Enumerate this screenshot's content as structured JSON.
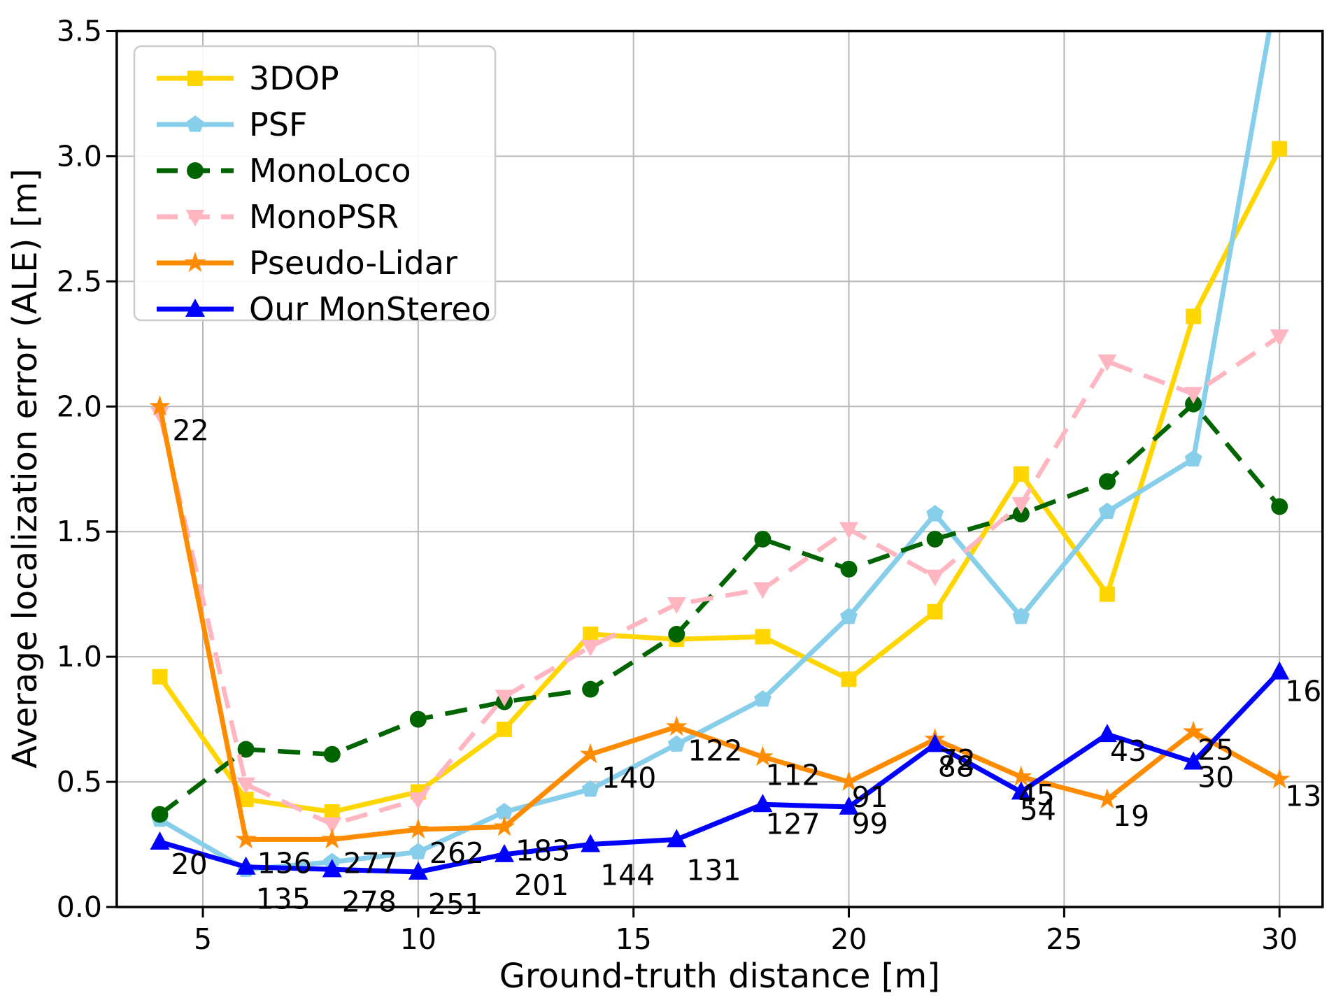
{
  "chart_data": {
    "type": "line",
    "title": "",
    "xlabel": "Ground-truth distance [m]",
    "ylabel": "Average localization error (ALE) [m]",
    "x": [
      4,
      6,
      8,
      10,
      12,
      14,
      16,
      18,
      20,
      22,
      24,
      26,
      28,
      30
    ],
    "xlim": [
      3,
      31
    ],
    "ylim": [
      0,
      3.5
    ],
    "xticks": [
      "5",
      "10",
      "15",
      "20",
      "25",
      "30"
    ],
    "yticks": [
      "0.0",
      "0.5",
      "1.0",
      "1.5",
      "2.0",
      "2.5",
      "3.0",
      "3.5"
    ],
    "grid": true,
    "legend_position": "upper left",
    "series": [
      {
        "name": "3DOP",
        "color": "#FFD600",
        "marker": "square",
        "dash": "solid",
        "values": [
          0.92,
          0.43,
          0.38,
          0.46,
          0.71,
          1.09,
          1.07,
          1.08,
          0.91,
          1.18,
          1.73,
          1.25,
          2.36,
          3.03
        ]
      },
      {
        "name": "PSF",
        "color": "#87CEEB",
        "marker": "pentagon",
        "dash": "solid",
        "values": [
          0.35,
          0.15,
          0.18,
          0.22,
          0.38,
          0.47,
          0.65,
          0.83,
          1.16,
          1.57,
          1.16,
          1.58,
          1.79,
          3.73
        ]
      },
      {
        "name": "MonoLoco",
        "color": "#006400",
        "marker": "circle",
        "dash": "dashed",
        "values": [
          0.37,
          0.63,
          0.61,
          0.75,
          0.82,
          0.87,
          1.09,
          1.47,
          1.35,
          1.47,
          1.57,
          1.7,
          2.01,
          1.6
        ]
      },
      {
        "name": "MonoPSR",
        "color": "#FFB6C1",
        "marker": "triangle-down",
        "dash": "dashed",
        "values": [
          1.97,
          0.49,
          0.33,
          0.43,
          0.84,
          1.04,
          1.21,
          1.27,
          1.51,
          1.32,
          1.61,
          2.18,
          2.05,
          2.28
        ]
      },
      {
        "name": "Pseudo-Lidar",
        "color": "#FF8C00",
        "marker": "star",
        "dash": "solid",
        "values": [
          2.0,
          0.27,
          0.27,
          0.31,
          0.32,
          0.61,
          0.72,
          0.6,
          0.5,
          0.67,
          0.52,
          0.43,
          0.7,
          0.51
        ]
      },
      {
        "name": "Our MonStereo",
        "color": "#0000FF",
        "marker": "triangle-up",
        "dash": "solid",
        "values": [
          0.26,
          0.16,
          0.15,
          0.14,
          0.21,
          0.25,
          0.27,
          0.41,
          0.4,
          0.65,
          0.46,
          0.69,
          0.58,
          0.94
        ]
      }
    ],
    "annotations": {
      "pseudo_lidar_counts": [
        22,
        136,
        277,
        262,
        183,
        140,
        122,
        112,
        91,
        72,
        45,
        19,
        25,
        13
      ],
      "monstereo_counts": [
        20,
        135,
        278,
        251,
        201,
        144,
        131,
        127,
        99,
        88,
        54,
        43,
        30,
        16
      ]
    }
  }
}
